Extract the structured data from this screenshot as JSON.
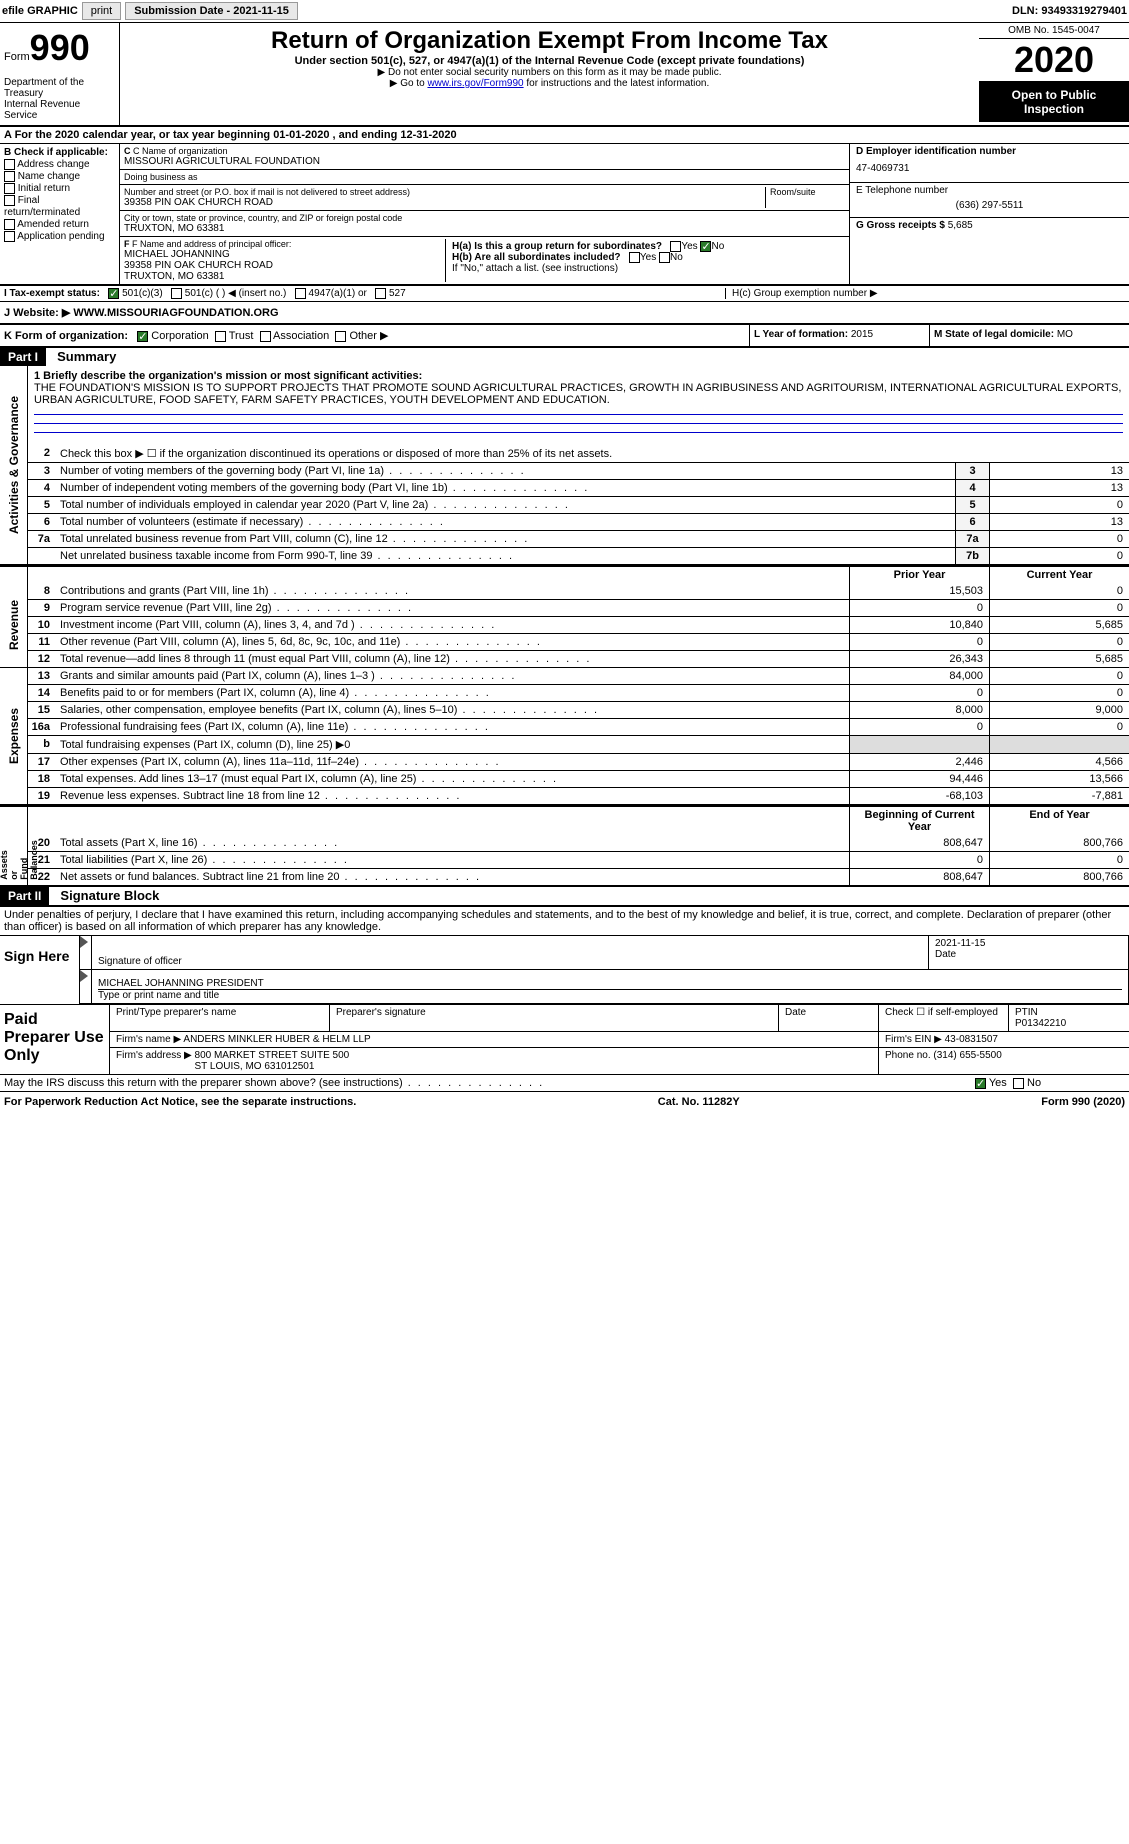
{
  "top_bar": {
    "efile_label": "efile GRAPHIC",
    "print_btn": "print",
    "submission_label": "Submission Date - 2021-11-15",
    "dln_label": "DLN: 93493319279401"
  },
  "header": {
    "form_word": "Form",
    "form_number": "990",
    "dept": "Department of the Treasury\nInternal Revenue Service",
    "title": "Return of Organization Exempt From Income Tax",
    "subtitle": "Under section 501(c), 527, or 4947(a)(1) of the Internal Revenue Code (except private foundations)",
    "note1": "▶ Do not enter social security numbers on this form as it may be made public.",
    "note2_prefix": "▶ Go to ",
    "note2_link": "www.irs.gov/Form990",
    "note2_suffix": " for instructions and the latest information.",
    "omb": "OMB No. 1545-0047",
    "year": "2020",
    "inspect": "Open to Public Inspection"
  },
  "row_a": "A For the 2020 calendar year, or tax year beginning 01-01-2020   , and ending 12-31-2020",
  "section_b": {
    "b_label": "B Check if applicable:",
    "items": [
      "Address change",
      "Name change",
      "Initial return",
      "Final return/terminated",
      "Amended return",
      "Application pending"
    ],
    "c_name_label": "C Name of organization",
    "c_name": "MISSOURI AGRICULTURAL FOUNDATION",
    "dba_label": "Doing business as",
    "dba": "",
    "addr_label": "Number and street (or P.O. box if mail is not delivered to street address)",
    "room_label": "Room/suite",
    "addr": "39358 PIN OAK CHURCH ROAD",
    "city_label": "City or town, state or province, country, and ZIP or foreign postal code",
    "city": "TRUXTON, MO  63381",
    "f_label": "F Name and address of principal officer:",
    "f_name": "MICHAEL JOHANNING",
    "f_addr": "39358 PIN OAK CHURCH ROAD\nTRUXTON, MO  63381",
    "d_label": "D Employer identification number",
    "d_value": "47-4069731",
    "e_label": "E Telephone number",
    "e_value": "(636) 297-5511",
    "g_label": "G Gross receipts $",
    "g_value": "5,685",
    "h_a": "H(a)  Is this a group return for subordinates?",
    "h_b": "H(b)  Are all subordinates included?",
    "h_note": "If \"No,\" attach a list. (see instructions)",
    "h_c": "H(c)  Group exemption number ▶",
    "yes": "Yes",
    "no": "No"
  },
  "row_i": {
    "label": "I   Tax-exempt status:",
    "opts": [
      "501(c)(3)",
      "501(c) (  ) ◀ (insert no.)",
      "4947(a)(1) or",
      "527"
    ]
  },
  "row_j": {
    "label": "J   Website: ▶",
    "value": " WWW.MISSOURIAGFOUNDATION.ORG"
  },
  "row_k": {
    "label": "K Form of organization:",
    "opts": [
      "Corporation",
      "Trust",
      "Association",
      "Other ▶"
    ],
    "l_label": "L Year of formation:",
    "l_value": "2015",
    "m_label": "M State of legal domicile:",
    "m_value": "MO"
  },
  "part1": {
    "header": "Part I",
    "title": "Summary",
    "mission_label": "1  Briefly describe the organization's mission or most significant activities:",
    "mission": "THE FOUNDATION'S MISSION IS TO SUPPORT PROJECTS THAT PROMOTE SOUND AGRICULTURAL PRACTICES, GROWTH IN AGRIBUSINESS AND AGRITOURISM, INTERNATIONAL AGRICULTURAL EXPORTS, URBAN AGRICULTURE, FOOD SAFETY, FARM SAFETY PRACTICES, YOUTH DEVELOPMENT AND EDUCATION.",
    "line2": "Check this box ▶ ☐ if the organization discontinued its operations or disposed of more than 25% of its net assets.",
    "gov_lines": [
      {
        "n": "3",
        "t": "Number of voting members of the governing body (Part VI, line 1a)",
        "box": "3",
        "v": "13"
      },
      {
        "n": "4",
        "t": "Number of independent voting members of the governing body (Part VI, line 1b)",
        "box": "4",
        "v": "13"
      },
      {
        "n": "5",
        "t": "Total number of individuals employed in calendar year 2020 (Part V, line 2a)",
        "box": "5",
        "v": "0"
      },
      {
        "n": "6",
        "t": "Total number of volunteers (estimate if necessary)",
        "box": "6",
        "v": "13"
      },
      {
        "n": "7a",
        "t": "Total unrelated business revenue from Part VIII, column (C), line 12",
        "box": "7a",
        "v": "0"
      },
      {
        "n": "",
        "t": "Net unrelated business taxable income from Form 990-T, line 39",
        "box": "7b",
        "v": "0"
      }
    ],
    "col_head_prior": "Prior Year",
    "col_head_current": "Current Year",
    "rev_lines": [
      {
        "n": "8",
        "t": "Contributions and grants (Part VIII, line 1h)",
        "p": "15,503",
        "c": "0"
      },
      {
        "n": "9",
        "t": "Program service revenue (Part VIII, line 2g)",
        "p": "0",
        "c": "0"
      },
      {
        "n": "10",
        "t": "Investment income (Part VIII, column (A), lines 3, 4, and 7d )",
        "p": "10,840",
        "c": "5,685"
      },
      {
        "n": "11",
        "t": "Other revenue (Part VIII, column (A), lines 5, 6d, 8c, 9c, 10c, and 11e)",
        "p": "0",
        "c": "0"
      },
      {
        "n": "12",
        "t": "Total revenue—add lines 8 through 11 (must equal Part VIII, column (A), line 12)",
        "p": "26,343",
        "c": "5,685"
      }
    ],
    "exp_lines": [
      {
        "n": "13",
        "t": "Grants and similar amounts paid (Part IX, column (A), lines 1–3 )",
        "p": "84,000",
        "c": "0"
      },
      {
        "n": "14",
        "t": "Benefits paid to or for members (Part IX, column (A), line 4)",
        "p": "0",
        "c": "0"
      },
      {
        "n": "15",
        "t": "Salaries, other compensation, employee benefits (Part IX, column (A), lines 5–10)",
        "p": "8,000",
        "c": "9,000"
      },
      {
        "n": "16a",
        "t": "Professional fundraising fees (Part IX, column (A), line 11e)",
        "p": "0",
        "c": "0"
      },
      {
        "n": "b",
        "t": "Total fundraising expenses (Part IX, column (D), line 25) ▶0",
        "p": "",
        "c": ""
      },
      {
        "n": "17",
        "t": "Other expenses (Part IX, column (A), lines 11a–11d, 11f–24e)",
        "p": "2,446",
        "c": "4,566"
      },
      {
        "n": "18",
        "t": "Total expenses. Add lines 13–17 (must equal Part IX, column (A), line 25)",
        "p": "94,446",
        "c": "13,566"
      },
      {
        "n": "19",
        "t": "Revenue less expenses. Subtract line 18 from line 12",
        "p": "-68,103",
        "c": "-7,881"
      }
    ],
    "na_head1": "Beginning of Current Year",
    "na_head2": "End of Year",
    "na_lines": [
      {
        "n": "20",
        "t": "Total assets (Part X, line 16)",
        "p": "808,647",
        "c": "800,766"
      },
      {
        "n": "21",
        "t": "Total liabilities (Part X, line 26)",
        "p": "0",
        "c": "0"
      },
      {
        "n": "22",
        "t": "Net assets or fund balances. Subtract line 21 from line 20",
        "p": "808,647",
        "c": "800,766"
      }
    ],
    "side_gov": "Activities & Governance",
    "side_rev": "Revenue",
    "side_exp": "Expenses",
    "side_na": "Net Assets or\nFund Balances"
  },
  "part2": {
    "header": "Part II",
    "title": "Signature Block",
    "intro": "Under penalties of perjury, I declare that I have examined this return, including accompanying schedules and statements, and to the best of my knowledge and belief, it is true, correct, and complete. Declaration of preparer (other than officer) is based on all information of which preparer has any knowledge.",
    "sign_here": "Sign Here",
    "sig_officer": "Signature of officer",
    "sig_date": "2021-11-15",
    "date_label": "Date",
    "sig_name": "MICHAEL JOHANNING PRESIDENT",
    "sig_name_label": "Type or print name and title",
    "paid_prep": "Paid Preparer Use Only",
    "prep_name_label": "Print/Type preparer's name",
    "prep_sig_label": "Preparer's signature",
    "prep_date_label": "Date",
    "prep_self": "Check ☐ if self-employed",
    "ptin_label": "PTIN",
    "ptin": "P01342210",
    "firm_name_label": "Firm's name    ▶",
    "firm_name": "ANDERS MINKLER HUBER & HELM LLP",
    "firm_ein_label": "Firm's EIN ▶",
    "firm_ein": "43-0831507",
    "firm_addr_label": "Firm's address ▶",
    "firm_addr": "800 MARKET STREET SUITE 500\nST LOUIS, MO  631012501",
    "phone_label": "Phone no.",
    "phone": "(314) 655-5500",
    "discuss": "May the IRS discuss this return with the preparer shown above? (see instructions)"
  },
  "footer": {
    "left": "For Paperwork Reduction Act Notice, see the separate instructions.",
    "mid": "Cat. No. 11282Y",
    "right": "Form 990 (2020)"
  }
}
